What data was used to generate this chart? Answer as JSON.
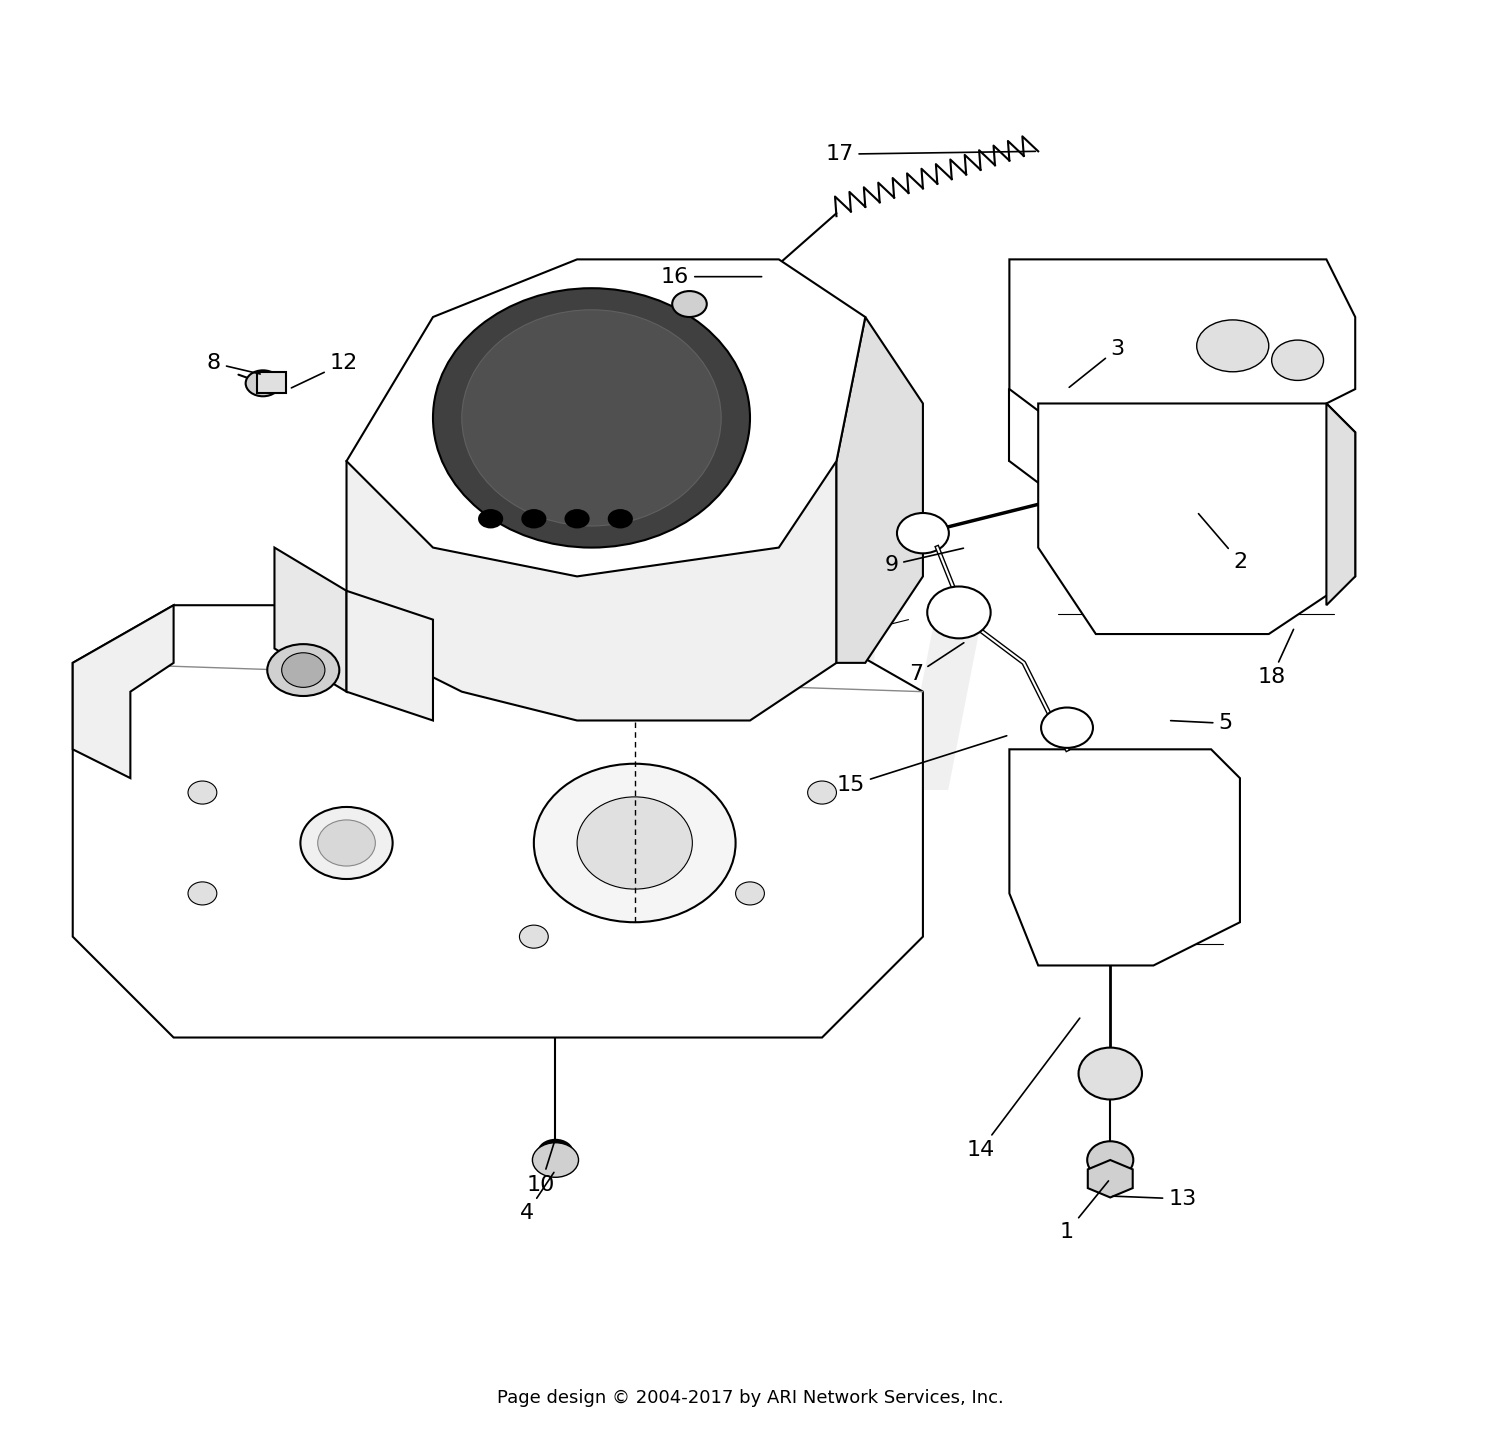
{
  "background_color": "#ffffff",
  "footer_text": "Page design © 2004-2017 by ARI Network Services, Inc.",
  "footer_fontsize": 13,
  "watermark_text": "ARI",
  "watermark_color": "#d0d0d0",
  "watermark_fontsize": 180,
  "watermark_alpha": 0.3,
  "figsize": [
    15.0,
    14.41
  ],
  "dpi": 100,
  "line_color": "#000000",
  "label_fontsize": 16
}
